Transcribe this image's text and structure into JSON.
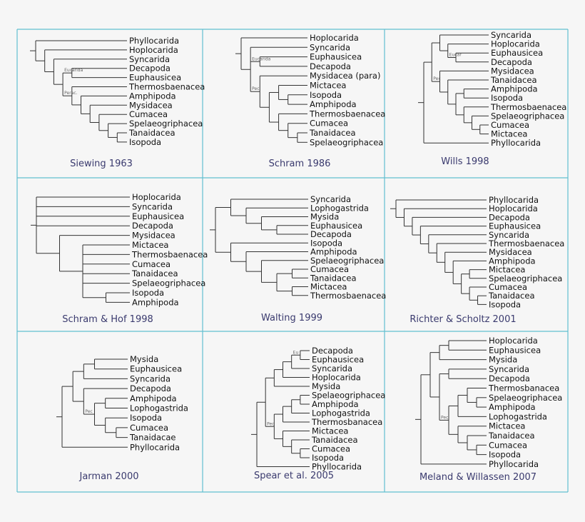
{
  "colors": {
    "border": "#62bfd0",
    "branch": "#333333",
    "caption": "#3a3a6e",
    "background": "#f6f6f6"
  },
  "panels": [
    {
      "caption": "Siewing 1963",
      "tree": [
        "Phyllocarida",
        [
          "Hoplocarida",
          [
            "Syncarida",
            [
              {
                "clade": "Eucarida",
                "children": [
                  "Decapoda",
                  "Euphausicea"
                ]
              },
              {
                "clade": "Perac.",
                "children": [
                  "Thermosbaenacea",
                  [
                    "Amphipoda",
                    [
                      "Mysidacea",
                      [
                        "Cumacea",
                        [
                          "Spelaeogriphacea",
                          [
                            "Tanaidacea",
                            "Isopoda"
                          ]
                        ]
                      ]
                    ]
                  ]
                ]
              }
            ]
          ]
        ]
      ]
    },
    {
      "caption": "Schram 1986",
      "tree": [
        "Hoplocarida",
        [
          "Syncarida",
          {
            "clade": "Eucarida",
            "children": [
              "Euphausicea",
              "Decapoda"
            ]
          },
          {
            "clade": "Pec",
            "children": [
              "Mysidacea (para)",
              [
                [
                  "Mictacea",
                  [
                    "Isopoda",
                    "Amphipoda"
                  ]
                ],
                [
                  "Thermosbaenacea",
                  [
                    "Cumacea",
                    [
                      "Tanaidacea",
                      "Spelaeogriphacea"
                    ]
                  ]
                ]
              ]
            ]
          }
        ]
      ]
    },
    {
      "caption": "Wills 1998",
      "tree": [
        [
          [
            "Syncarida",
            [
              "Hoplocarida",
              {
                "clade": "Eucar",
                "children": [
                  "Euphausicea",
                  "Decapoda"
                ]
              }
            ]
          ],
          {
            "clade": "Pec",
            "children": [
              "Mysidacea",
              [
                "Tanaidacea",
                [
                  [
                    "Amphipoda",
                    "Isopoda"
                  ],
                  [
                    "Thermosbaenacea",
                    [
                      "Spelaeogriphacea",
                      [
                        "Cumacea",
                        "Mictacea"
                      ]
                    ]
                  ]
                ]
              ]
            ]
          }
        ],
        "Phyllocarida"
      ]
    },
    {
      "caption": "Schram & Hof 1998",
      "tree": [
        "Hoplocarida",
        "Syncarida",
        "Euphausicea",
        "Decapoda",
        [
          "Mysidacea",
          [
            "Mictacea",
            "Thermosbaenacea",
            "Cumacea",
            "Tanaidacea",
            "Spelaeogriphacea",
            [
              "Isopoda",
              "Amphipoda"
            ]
          ]
        ]
      ]
    },
    {
      "caption": "Walting 1999",
      "tree": [
        [
          "Syncarida",
          [
            "Lophogastrida",
            [
              "Mysida",
              [
                "Euphausicea",
                "Decapoda"
              ]
            ]
          ]
        ],
        [
          "Isopoda",
          [
            "Amphipoda",
            [
              "Spelaeogriphacea",
              [
                [
                  "Cumacea",
                  "Tanaidacea"
                ],
                [
                  "Mictacea",
                  "Thermosbaenacea"
                ]
              ]
            ]
          ]
        ]
      ]
    },
    {
      "caption": "Richter & Scholtz 2001",
      "tree": [
        "Phyllocarida",
        [
          "Hoplocarida",
          [
            "Decapoda",
            [
              "Euphausicea",
              [
                "Syncarida",
                [
                  "Thermosbaenacea",
                  [
                    "Mysidacea",
                    [
                      "Amphipoda",
                      [
                        [
                          "Mictacea",
                          "Spelaeogriphacea"
                        ],
                        [
                          "Cumacea",
                          [
                            "Tanaidacea",
                            "Isopoda"
                          ]
                        ]
                      ]
                    ]
                  ]
                ]
              ]
            ]
          ]
        ]
      ]
    },
    {
      "caption": "Jarman 2000",
      "tree": [
        [
          [
            [
              "Mysida",
              "Euphausicea"
            ],
            "Syncarida"
          ],
          [
            "Decapoda",
            {
              "clade": "Pec",
              "children": [
                [
                  "Amphipoda",
                  "Lophogastrida"
                ],
                [
                  "Isopoda",
                  [
                    "Cumacea",
                    "Tanaidacae"
                  ]
                ]
              ]
            }
          ]
        ],
        "Phyllocarida"
      ]
    },
    {
      "caption": "Spear et al. 2005",
      "tree": [
        [
          [
            [
              [
                {
                  "clade": "Eu",
                  "children": [
                    "Decapoda",
                    "Euphausicea"
                  ]
                },
                "Syncarida"
              ],
              "Hoplocarida"
            ],
            "Mysida"
          ],
          {
            "clade": "Pec",
            "children": [
              [
                [
                  [
                    "Spelaeogriphacea",
                    "Amphipoda"
                  ],
                  "Lophogastrida"
                ],
                "Thermosbanacea"
              ],
              [
                "Mictacea",
                [
                  "Tanaidacea",
                  [
                    "Cumacea",
                    "Isopoda"
                  ]
                ]
              ]
            ]
          }
        ],
        "Phyllocarida"
      ]
    },
    {
      "caption": "Meland & Willassen 2007",
      "tree": [
        [
          [
            [
              "Hoplocarida",
              "Euphausicea"
            ],
            "Mysida"
          ],
          [
            [
              "Syncarida",
              "Decapoda"
            ],
            {
              "clade": "Pec",
              "children": [
                [
                  [
                    "Thermosbanacea",
                    [
                      "Spelaeogriphacea",
                      "Amphipoda"
                    ]
                  ],
                  "Lophogastrida"
                ],
                [
                  "Mictacea",
                  [
                    "Tanaidacea",
                    [
                      "Cumacea",
                      "Isopoda"
                    ]
                  ]
                ]
              ]
            }
          ]
        ],
        "Phyllocarida"
      ]
    }
  ]
}
